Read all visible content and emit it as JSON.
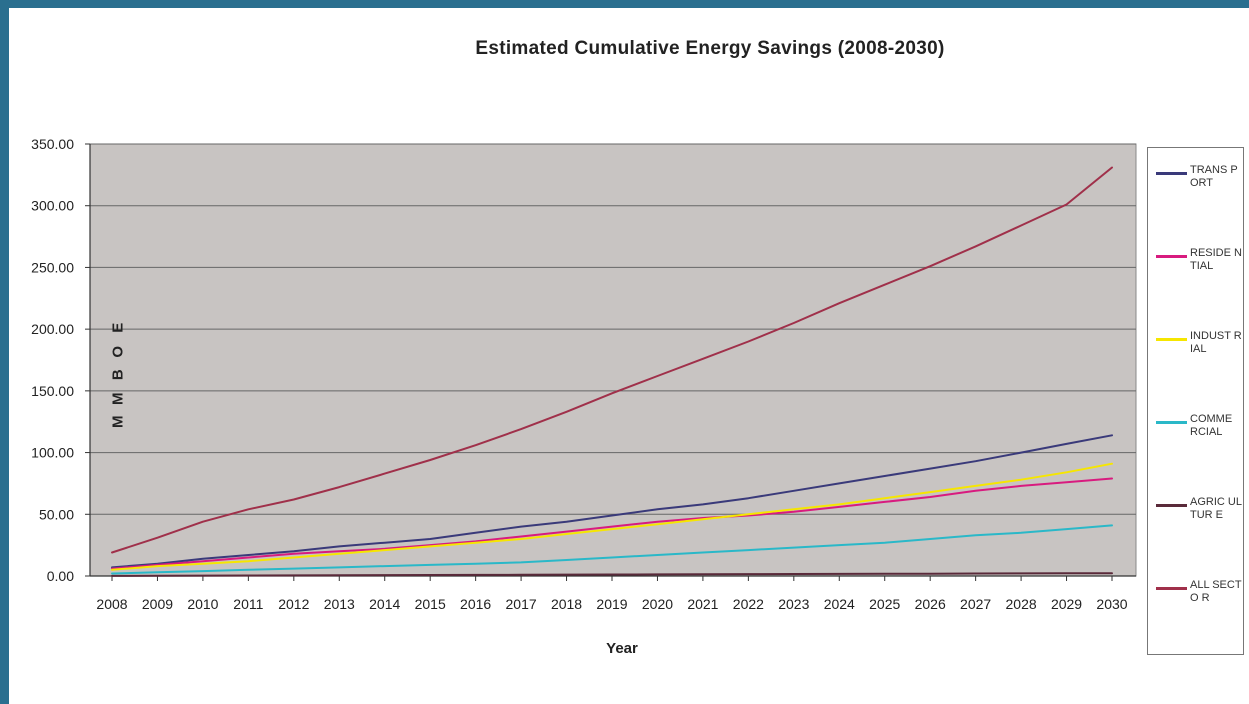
{
  "chart_data": {
    "type": "line",
    "title": "Estimated Cumulative Energy Savings (2008-2030)",
    "xlabel": "Year",
    "ylabel": "M M B O E",
    "ylim": [
      0,
      350
    ],
    "yticks": [
      "0.00",
      "50.00",
      "100.00",
      "150.00",
      "200.00",
      "250.00",
      "300.00",
      "350.00"
    ],
    "ytick_values": [
      0,
      50,
      100,
      150,
      200,
      250,
      300,
      350
    ],
    "x": [
      "2008",
      "2009",
      "2010",
      "2011",
      "2012",
      "2013",
      "2014",
      "2015",
      "2016",
      "2017",
      "2018",
      "2019",
      "2020",
      "2021",
      "2022",
      "2023",
      "2024",
      "2025",
      "2026",
      "2027",
      "2028",
      "2029",
      "2030"
    ],
    "grid": true,
    "plot_background": "#c8c4c2",
    "legend_position": "right",
    "series": [
      {
        "name": "TRANS PORT",
        "legend_label": "TRANS PORT",
        "color": "#3a3a7a",
        "values": [
          7,
          10,
          14,
          17,
          20,
          24,
          27,
          30,
          35,
          40,
          44,
          49,
          54,
          58,
          63,
          69,
          75,
          81,
          87,
          93,
          100,
          107,
          114
        ]
      },
      {
        "name": "RESIDENTIAL",
        "legend_label": "RESIDE NTIAL",
        "color": "#d81b7f",
        "values": [
          6,
          9,
          12,
          15,
          18,
          20,
          22,
          25,
          28,
          32,
          36,
          40,
          44,
          47,
          49,
          52,
          56,
          60,
          64,
          69,
          73,
          76,
          79
        ]
      },
      {
        "name": "INDUSTRIAL",
        "legend_label": "INDUST RIAL",
        "color": "#f6e600",
        "values": [
          5,
          8,
          10,
          12,
          15,
          18,
          21,
          24,
          27,
          30,
          34,
          38,
          42,
          46,
          50,
          54,
          58,
          63,
          68,
          73,
          78,
          84,
          91
        ]
      },
      {
        "name": "COMMERCIAL",
        "legend_label": "COMME RCIAL",
        "color": "#2ab8c8",
        "values": [
          2,
          3,
          4,
          5,
          6,
          7,
          8,
          9,
          10,
          11,
          13,
          15,
          17,
          19,
          21,
          23,
          25,
          27,
          30,
          33,
          35,
          38,
          41
        ]
      },
      {
        "name": "AGRICULTURE",
        "legend_label": "AGRIC ULTUR E",
        "color": "#5a2a3a",
        "values": [
          0.1,
          0.2,
          0.3,
          0.4,
          0.5,
          0.6,
          0.7,
          0.8,
          0.9,
          1.0,
          1.1,
          1.2,
          1.3,
          1.4,
          1.5,
          1.6,
          1.7,
          1.8,
          1.9,
          2.0,
          2.1,
          2.2,
          2.3
        ]
      },
      {
        "name": "ALL SECTOR",
        "legend_label": "ALL SECTO R",
        "color": "#a0304a",
        "values": [
          19,
          31,
          44,
          54,
          62,
          72,
          83,
          94,
          106,
          119,
          133,
          148,
          162,
          176,
          190,
          205,
          221,
          236,
          251,
          267,
          284,
          301,
          331
        ]
      }
    ]
  }
}
